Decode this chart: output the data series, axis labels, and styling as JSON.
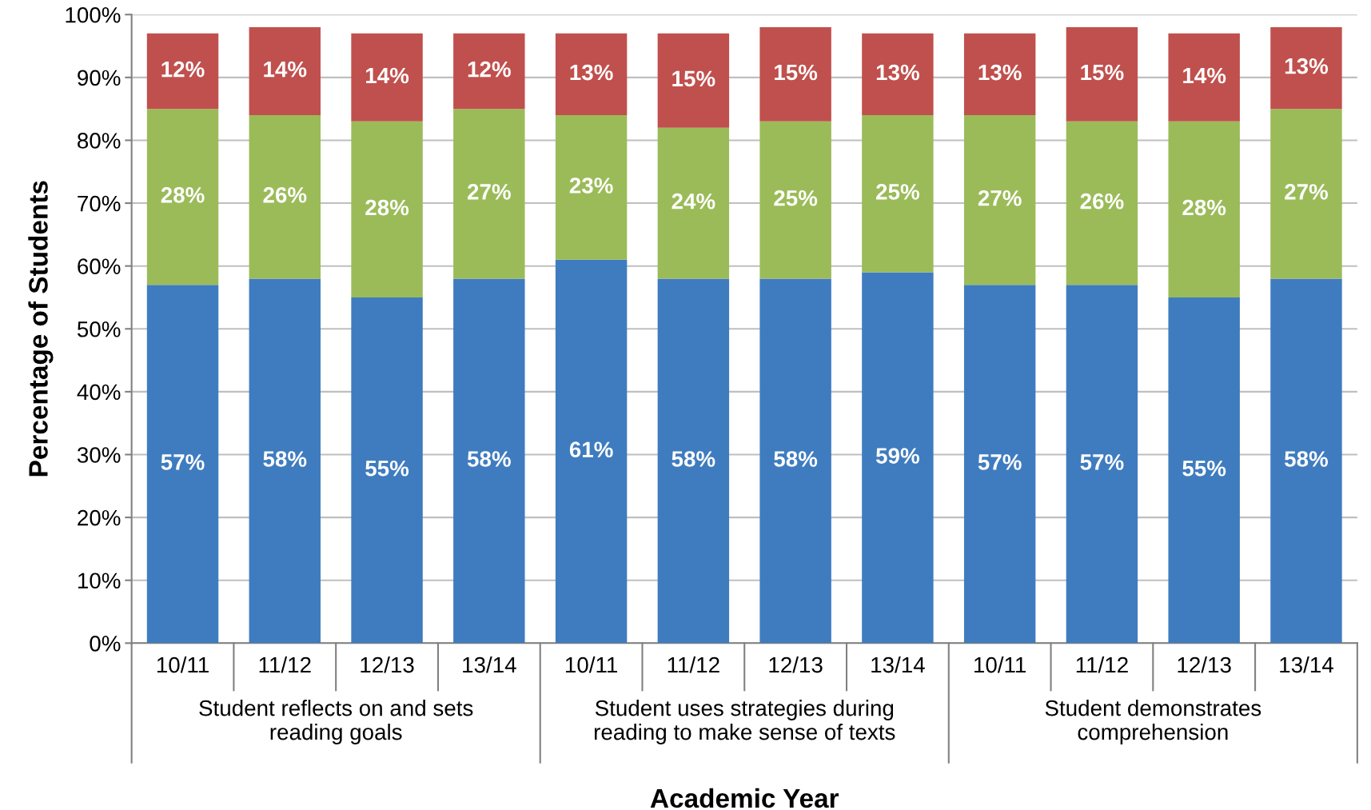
{
  "chart_data": {
    "type": "bar",
    "stacked": true,
    "xlabel": "Academic Year",
    "ylabel": "Percentage of Students",
    "categories": [
      "10/11",
      "11/12",
      "12/13",
      "13/14",
      "10/11",
      "11/12",
      "12/13",
      "13/14",
      "10/11",
      "11/12",
      "12/13",
      "13/14"
    ],
    "annotations": [
      "Student reflects on and sets\nreading goals",
      "Student uses strategies during\nreading to make sense of texts",
      "Student demonstrates\ncomprehension"
    ],
    "series": [
      {
        "color": "#3f7cbf",
        "values": [
          57,
          58,
          55,
          58,
          61,
          58,
          58,
          59,
          57,
          57,
          55,
          58
        ],
        "value_labels": [
          "57%",
          "58%",
          "55%",
          "58%",
          "61%",
          "58%",
          "58%",
          "59%",
          "57%",
          "57%",
          "55%",
          "58%"
        ]
      },
      {
        "color": "#9bbb59",
        "values": [
          28,
          26,
          28,
          27,
          23,
          24,
          25,
          25,
          27,
          26,
          28,
          27
        ],
        "value_labels": [
          "28%",
          "26%",
          "28%",
          "27%",
          "23%",
          "24%",
          "25%",
          "25%",
          "27%",
          "26%",
          "28%",
          "27%"
        ]
      },
      {
        "color": "#c0504d",
        "values": [
          12,
          14,
          14,
          12,
          13,
          15,
          15,
          13,
          13,
          15,
          14,
          13
        ],
        "value_labels": [
          "12%",
          "14%",
          "14%",
          "12%",
          "13%",
          "15%",
          "15%",
          "13%",
          "13%",
          "15%",
          "14%",
          "13%"
        ]
      }
    ],
    "ylim": [
      0,
      100
    ],
    "yticks": [
      {
        "value": 0,
        "label": "0%"
      },
      {
        "value": 10,
        "label": "10%"
      },
      {
        "value": 20,
        "label": "20%"
      },
      {
        "value": 30,
        "label": "30%"
      },
      {
        "value": 40,
        "label": "40%"
      },
      {
        "value": 50,
        "label": "50%"
      },
      {
        "value": 60,
        "label": "60%"
      },
      {
        "value": 70,
        "label": "70%"
      },
      {
        "value": 80,
        "label": "80%"
      },
      {
        "value": 90,
        "label": "90%"
      },
      {
        "value": 100,
        "label": "100%"
      }
    ],
    "grid": "y",
    "legend": false
  }
}
